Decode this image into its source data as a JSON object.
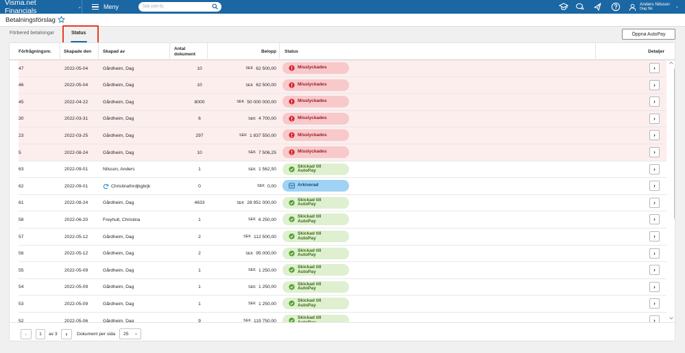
{
  "app": {
    "brand": "Visma.net Financials",
    "menu_label": "Meny",
    "search_placeholder": "Sök (Alt+S)",
    "user_name": "Anders Nilsson",
    "user_company": "Dag SE"
  },
  "page": {
    "title": "Betalningsförslag",
    "tabs": [
      {
        "label": "Förbered betalningar",
        "active": false
      },
      {
        "label": "Status",
        "active": true
      }
    ],
    "autopay_button": "Öppna AutoPay"
  },
  "table": {
    "columns": {
      "request_nr": "Förfrågningsnr.",
      "created": "Skapade den",
      "created_by": "Skapad av",
      "doc_count": "Antal dokument",
      "amount": "Belopp",
      "status": "Status",
      "details": "Detaljer"
    },
    "rows": [
      {
        "nr": "47",
        "date": "2022-05-04",
        "by": "Gårdheim, Dag",
        "docs": "10",
        "cur": "SEK",
        "amount": "62 500,00",
        "status": "Misslyckades",
        "kind": "fail"
      },
      {
        "nr": "46",
        "date": "2022-05-04",
        "by": "Gårdheim, Dag",
        "docs": "10",
        "cur": "SEK",
        "amount": "62 500,00",
        "status": "Misslyckades",
        "kind": "fail"
      },
      {
        "nr": "45",
        "date": "2022-04-22",
        "by": "Gårdheim, Dag",
        "docs": "8000",
        "cur": "SEK",
        "amount": "50 000 000,00",
        "status": "Misslyckades",
        "kind": "fail"
      },
      {
        "nr": "30",
        "date": "2022-03-31",
        "by": "Gårdheim, Dag",
        "docs": "6",
        "cur": "SEK",
        "amount": "4 700,00",
        "status": "Misslyckades",
        "kind": "fail"
      },
      {
        "nr": "23",
        "date": "2022-03-25",
        "by": "Gårdheim, Dag",
        "docs": "297",
        "cur": "SEK",
        "amount": "1 837 550,00",
        "status": "Misslyckades",
        "kind": "fail"
      },
      {
        "nr": "5",
        "date": "2022-08-24",
        "by": "Gårdheim, Dag",
        "docs": "10",
        "cur": "SEK",
        "amount": "7 506,25",
        "status": "Misslyckades",
        "kind": "fail"
      },
      {
        "nr": "63",
        "date": "2022-09-01",
        "by": "Nilsson, Anders",
        "docs": "1",
        "cur": "SEK",
        "amount": "1 562,50",
        "status": "Skickad till AutoPay",
        "kind": "ok"
      },
      {
        "nr": "62",
        "date": "2022-09-01",
        "by": "Christinafnrdjkgbrjk",
        "docs": "0",
        "cur": "SEK",
        "amount": "0,00",
        "status": "Arkiverad",
        "kind": "arch",
        "sync": true
      },
      {
        "nr": "61",
        "date": "2022-08-24",
        "by": "Gårdheim, Dag",
        "docs": "4633",
        "cur": "SEK",
        "amount": "28 951 000,00",
        "status": "Skickad till AutoPay",
        "kind": "ok"
      },
      {
        "nr": "58",
        "date": "2022-06-20",
        "by": "Freyhult, Christina",
        "docs": "1",
        "cur": "SEK",
        "amount": "6 250,00",
        "status": "Skickad till AutoPay",
        "kind": "ok"
      },
      {
        "nr": "57",
        "date": "2022-05-12",
        "by": "Gårdheim, Dag",
        "docs": "2",
        "cur": "SEK",
        "amount": "112 500,00",
        "status": "Skickad till AutoPay",
        "kind": "ok"
      },
      {
        "nr": "56",
        "date": "2022-05-12",
        "by": "Gårdheim, Dag",
        "docs": "2",
        "cur": "SEK",
        "amount": "95 000,00",
        "status": "Skickad till AutoPay",
        "kind": "ok"
      },
      {
        "nr": "55",
        "date": "2022-05-09",
        "by": "Gårdheim, Dag",
        "docs": "1",
        "cur": "SEK",
        "amount": "1 250,00",
        "status": "Skickad till AutoPay",
        "kind": "ok"
      },
      {
        "nr": "54",
        "date": "2022-05-09",
        "by": "Gårdheim, Dag",
        "docs": "1",
        "cur": "SEK",
        "amount": "1 250,00",
        "status": "Skickad till AutoPay",
        "kind": "ok"
      },
      {
        "nr": "53",
        "date": "2022-05-09",
        "by": "Gårdheim, Dag",
        "docs": "1",
        "cur": "SEK",
        "amount": "1 250,00",
        "status": "Skickad till AutoPay",
        "kind": "ok"
      },
      {
        "nr": "52",
        "date": "2022-05-06",
        "by": "Gårdheim, Dag",
        "docs": "9",
        "cur": "SEK",
        "amount": "119 750,00",
        "status": "Skickad till AutoPay",
        "kind": "ok"
      }
    ]
  },
  "pagination": {
    "current_page": "1",
    "of_text": "av 3",
    "per_page_label": "Dokument per sida",
    "per_page_value": "25"
  },
  "colors": {
    "topbar": "#1a67a3",
    "failed_row": "#fdeeee",
    "failed_badge": "#f7c9cb",
    "ok_badge": "#dff0d1",
    "archived_badge": "#9fd2f4",
    "highlight": "#e63b1f"
  },
  "icons": {
    "topbar": [
      "graduation-cap-icon",
      "chat-icon",
      "megaphone-icon",
      "help-icon",
      "user-icon"
    ],
    "status_fail": "exclamation-icon",
    "status_ok": "check-icon",
    "status_archived": "archive-icon",
    "created_by_sync": "sync-icon"
  }
}
